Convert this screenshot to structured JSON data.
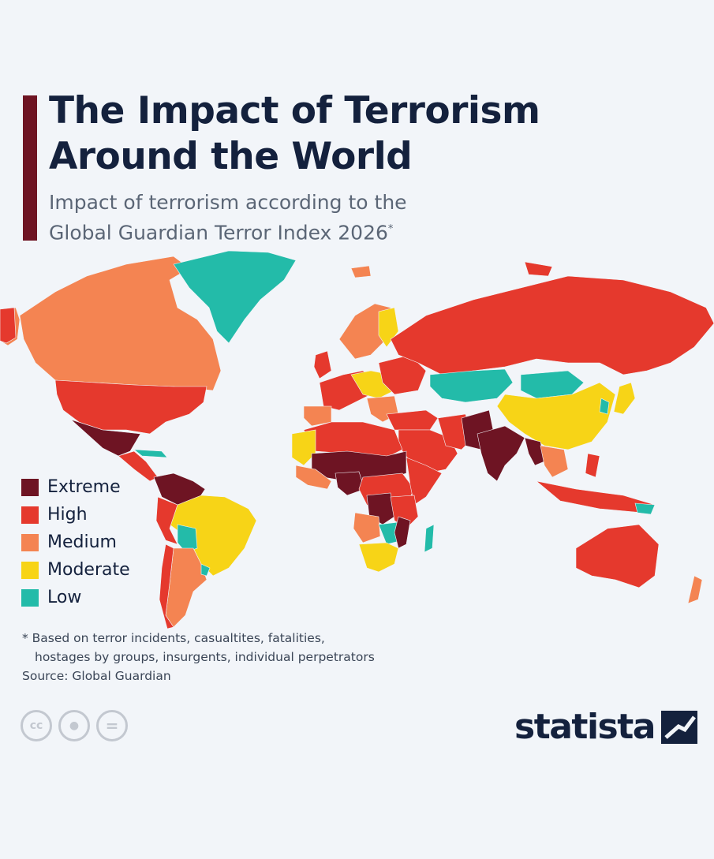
{
  "header": {
    "title_line1": "The Impact of Terrorism",
    "title_line2": "Around the World",
    "subtitle_line1": "Impact of terrorism according to the",
    "subtitle_line2": "Global Guardian Terror Index 2026",
    "subtitle_mark": "*"
  },
  "legend": {
    "items": [
      {
        "label": "Extreme",
        "color": "#6e1423"
      },
      {
        "label": "High",
        "color": "#e5392d"
      },
      {
        "label": "Medium",
        "color": "#f48452"
      },
      {
        "label": "Moderate",
        "color": "#f7d417"
      },
      {
        "label": "Low",
        "color": "#23bba9"
      }
    ]
  },
  "colors": {
    "extreme": "#6e1423",
    "high": "#e5392d",
    "medium": "#f48452",
    "moderate": "#f7d417",
    "low": "#23bba9",
    "nodata": "#c9ced6",
    "title": "#14213d",
    "accent_bar": "#6e1423"
  },
  "footnote": {
    "line1": "* Based on terror incidents, casualtites, fatalities,",
    "line2": "hostages by groups, insurgents, individual perpetrators"
  },
  "source": "Source: Global Guardian",
  "license_icons": [
    "cc-icon",
    "person-icon",
    "equals-icon"
  ],
  "license_glyphs": {
    "cc": "cc",
    "by": "●",
    "nd": "="
  },
  "brand": "statista"
}
